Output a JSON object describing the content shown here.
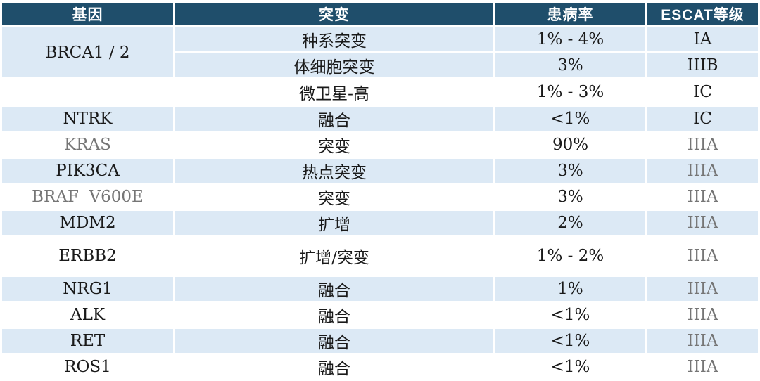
{
  "table": {
    "title": "ESCAT gene alteration table",
    "columns": [
      {
        "label": "基因"
      },
      {
        "label": "突变"
      },
      {
        "label": "患病率"
      },
      {
        "label": "ESCAT等级"
      }
    ],
    "rows": [
      {
        "gene": "BRCA1 / 2",
        "gene_rowspan": 2,
        "mutation": "种系突变",
        "prevalence": "1% - 4%",
        "escat": "IA",
        "shade": "blue"
      },
      {
        "mutation": "体细胞突变",
        "prevalence": "3%",
        "escat": "IIIB",
        "shade": "blue"
      },
      {
        "gene": "",
        "mutation": "微卫星-高",
        "prevalence": "1% - 3%",
        "escat": "IC",
        "shade": "white"
      },
      {
        "gene": "NTRK",
        "mutation": "融合",
        "prevalence": "<1%",
        "escat": "IC",
        "shade": "blue"
      },
      {
        "gene": "KRAS",
        "gene_muted": true,
        "mutation": "突变",
        "prevalence": "90%",
        "escat": "IIIA",
        "escat_muted": true,
        "shade": "white"
      },
      {
        "gene": "PIK3CA",
        "mutation": "热点突变",
        "prevalence": "3%",
        "escat": "IIIA",
        "escat_muted": true,
        "shade": "blue"
      },
      {
        "gene": "BRAF  V600E",
        "gene_muted": true,
        "mutation": "突变",
        "prevalence": "3%",
        "escat": "IIIA",
        "escat_muted": true,
        "shade": "white"
      },
      {
        "gene": "MDM2",
        "mutation": "扩增",
        "prevalence": "2%",
        "escat": "IIIA",
        "escat_muted": true,
        "shade": "blue"
      },
      {
        "gene": "ERBB2",
        "mutation": "扩增/突变",
        "prevalence": "1% - 2%",
        "escat": "IIIA",
        "escat_muted": true,
        "shade": "white"
      },
      {
        "gene": "NRG1",
        "mutation": "融合",
        "prevalence": "1%",
        "escat": "IIIA",
        "escat_muted": true,
        "shade": "blue"
      },
      {
        "gene": "ALK",
        "mutation": "融合",
        "prevalence": "<1%",
        "escat": "IIIA",
        "escat_muted": true,
        "shade": "white"
      },
      {
        "gene": "RET",
        "mutation": "融合",
        "prevalence": "<1%",
        "escat": "IIIA",
        "escat_muted": true,
        "shade": "blue"
      },
      {
        "gene": "ROS1",
        "mutation": "融合",
        "prevalence": "<1%",
        "escat": "IIIA",
        "escat_muted": true,
        "shade": "white"
      }
    ]
  },
  "colors": {
    "header_bg": "#1F4E6B",
    "header_text": "#FFFFFF",
    "row_blue": "#DCE9F5",
    "row_white": "#FFFFFF",
    "body_text": "#1A1A1A",
    "muted_text": "#767676"
  }
}
